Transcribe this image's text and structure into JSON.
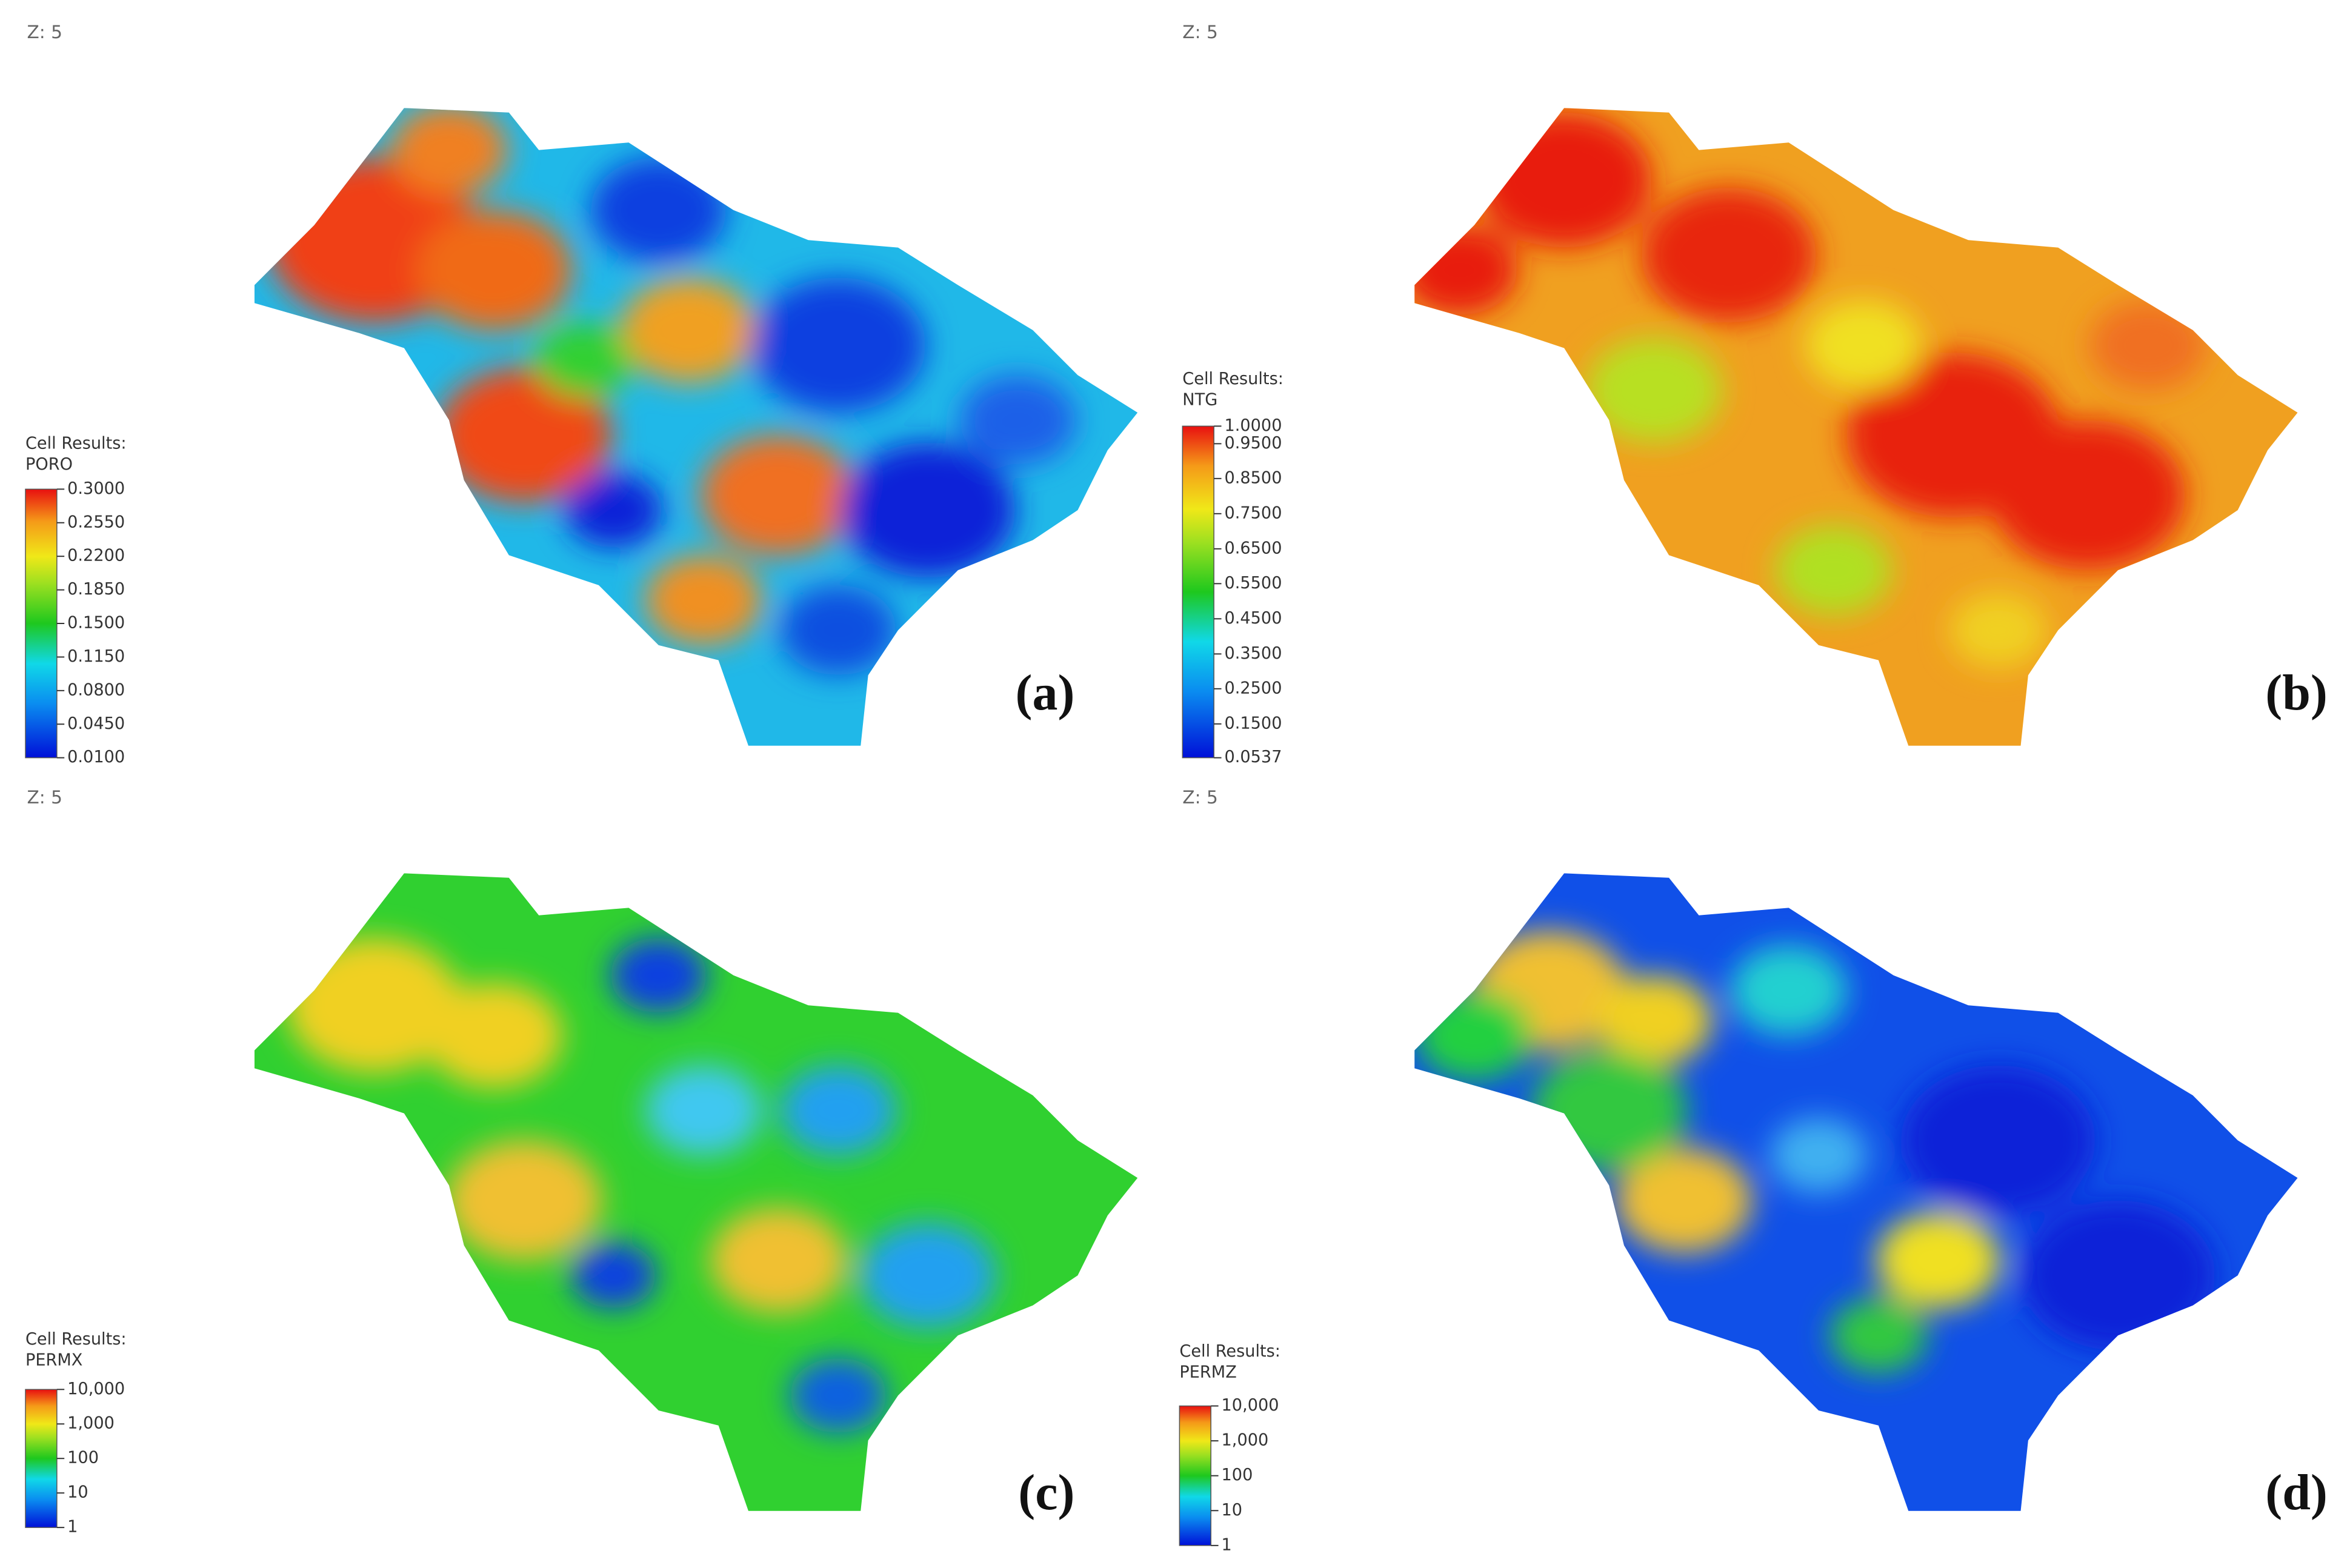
{
  "panels": [
    {
      "z_label": "Z: 5",
      "legend": {
        "title": "Cell Results:",
        "property": "PORO",
        "ticks": [
          "0.3000",
          "0.2550",
          "0.2200",
          "0.1850",
          "0.1500",
          "0.1150",
          "0.0800",
          "0.0450",
          "0.0100"
        ]
      },
      "caption": "(a)"
    },
    {
      "z_label": "Z: 5",
      "legend": {
        "title": "Cell Results:",
        "property": "NTG",
        "ticks": [
          "1.0000",
          "0.9500",
          "0.8500",
          "0.7500",
          "0.6500",
          "0.5500",
          "0.4500",
          "0.3500",
          "0.2500",
          "0.1500",
          "0.0537"
        ]
      },
      "caption": "(b)"
    },
    {
      "z_label": "Z: 5",
      "legend": {
        "title": "Cell Results:",
        "property": "PERMX",
        "ticks": [
          "10,000",
          "1,000",
          "100",
          "10",
          "1"
        ]
      },
      "caption": "(c)"
    },
    {
      "z_label": "Z: 5",
      "legend": {
        "title": "Cell Results:",
        "property": "PERMZ",
        "ticks": [
          "10,000",
          "1,000",
          "100",
          "10",
          "1"
        ]
      },
      "caption": "(d)"
    }
  ]
}
